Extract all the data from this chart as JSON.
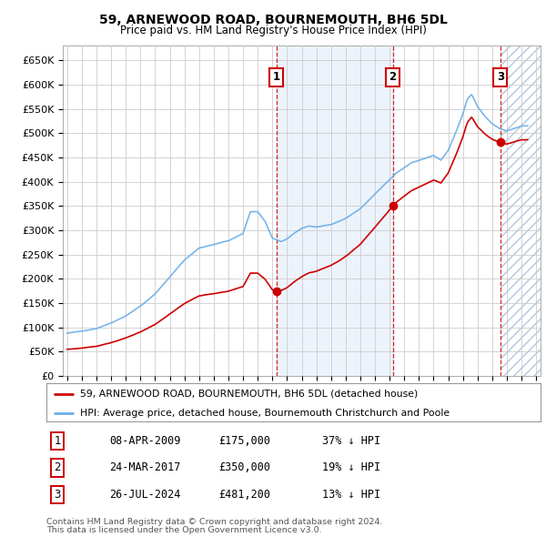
{
  "title": "59, ARNEWOOD ROAD, BOURNEMOUTH, BH6 5DL",
  "subtitle": "Price paid vs. HM Land Registry's House Price Index (HPI)",
  "hpi_color": "#6aaee8",
  "price_color": "#cc0000",
  "background_color": "#ffffff",
  "grid_color": "#cccccc",
  "sale_bg_color": "#dce9f8",
  "ylim": [
    0,
    680000
  ],
  "yticks": [
    0,
    50000,
    100000,
    150000,
    200000,
    250000,
    300000,
    350000,
    400000,
    450000,
    500000,
    550000,
    600000,
    650000
  ],
  "xlim_start": 1994.7,
  "xlim_end": 2027.3,
  "sales": [
    {
      "num": 1,
      "date": "08-APR-2009",
      "price": 175000,
      "year": 2009.27,
      "pct": "37%",
      "dir": "↓"
    },
    {
      "num": 2,
      "date": "24-MAR-2017",
      "price": 350000,
      "year": 2017.22,
      "pct": "19%",
      "dir": "↓"
    },
    {
      "num": 3,
      "date": "26-JUL-2024",
      "price": 481200,
      "year": 2024.56,
      "pct": "13%",
      "dir": "↓"
    }
  ],
  "legend_line1": "59, ARNEWOOD ROAD, BOURNEMOUTH, BH6 5DL (detached house)",
  "legend_line2": "HPI: Average price, detached house, Bournemouth Christchurch and Poole",
  "footer1": "Contains HM Land Registry data © Crown copyright and database right 2024.",
  "footer2": "This data is licensed under the Open Government Licence v3.0."
}
